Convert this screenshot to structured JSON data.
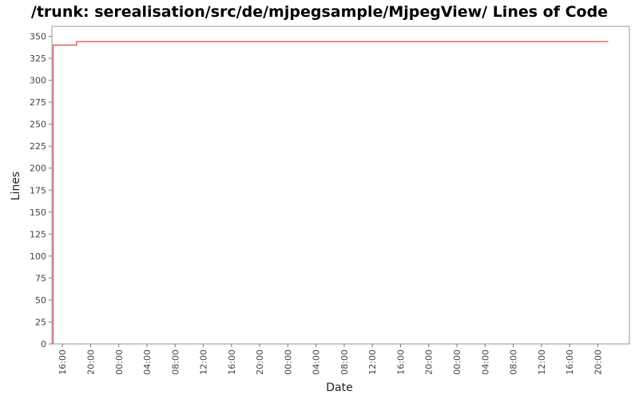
{
  "chart_data": {
    "type": "line",
    "title": "/trunk: serealisation/src/de/mjpegsample/MjpegView/ Lines of Code",
    "xlabel": "Date",
    "ylabel": "Lines",
    "ylim": [
      0,
      360
    ],
    "y_ticks": [
      "0",
      "25",
      "50",
      "75",
      "100",
      "125",
      "150",
      "175",
      "200",
      "225",
      "250",
      "275",
      "300",
      "325",
      "350"
    ],
    "x_ticks": [
      "16:00",
      "20:00",
      "00:00",
      "04:00",
      "08:00",
      "12:00",
      "16:00",
      "20:00",
      "00:00",
      "04:00",
      "08:00",
      "12:00",
      "16:00",
      "20:00",
      "00:00",
      "04:00",
      "08:00",
      "12:00",
      "16:00",
      "20:00"
    ],
    "x_ticks_start": "Day 1 16:00",
    "x_tick_interval_hours": 4,
    "xlim_hours": [
      -1.5,
      80.5
    ],
    "series": [
      {
        "color": "#e8414f",
        "points": [
          {
            "x": "Day 1 14:40",
            "y": 0
          },
          {
            "x": "Day 1 14:40",
            "y": 340
          },
          {
            "x": "Day 1 18:00",
            "y": 340
          },
          {
            "x": "Day 1 18:00",
            "y": 344
          },
          {
            "x": "Day 4 21:30",
            "y": 344
          }
        ]
      }
    ],
    "grid": false,
    "legend": "none"
  }
}
